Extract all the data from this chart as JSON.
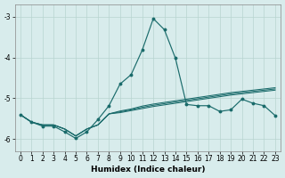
{
  "xlabel": "Humidex (Indice chaleur)",
  "background_color": "#d8ecec",
  "grid_color": "#b8d4d0",
  "line_color": "#1a6b6b",
  "xlim": [
    -0.5,
    23.5
  ],
  "ylim": [
    -6.3,
    -2.7
  ],
  "yticks": [
    -3,
    -4,
    -5,
    -6
  ],
  "xticks": [
    0,
    1,
    2,
    3,
    4,
    5,
    6,
    7,
    8,
    9,
    10,
    11,
    12,
    13,
    14,
    15,
    16,
    17,
    18,
    19,
    20,
    21,
    22,
    23
  ],
  "main_series": [
    -5.4,
    -5.58,
    -5.68,
    -5.68,
    -5.82,
    -5.98,
    -5.82,
    -5.52,
    -5.18,
    -4.65,
    -4.42,
    -3.82,
    -3.05,
    -3.32,
    -4.02,
    -5.15,
    -5.18,
    -5.18,
    -5.32,
    -5.28,
    -5.02,
    -5.12,
    -5.18,
    -5.42
  ],
  "flat1": [
    -5.4,
    -5.58,
    -5.65,
    -5.65,
    -5.75,
    -5.92,
    -5.75,
    -5.65,
    -5.38,
    -5.35,
    -5.3,
    -5.25,
    -5.2,
    -5.16,
    -5.12,
    -5.08,
    -5.04,
    -5.0,
    -4.96,
    -4.92,
    -4.89,
    -4.86,
    -4.83,
    -4.8
  ],
  "flat2": [
    -5.4,
    -5.58,
    -5.65,
    -5.65,
    -5.75,
    -5.92,
    -5.75,
    -5.65,
    -5.38,
    -5.33,
    -5.28,
    -5.22,
    -5.17,
    -5.13,
    -5.09,
    -5.05,
    -5.01,
    -4.97,
    -4.93,
    -4.89,
    -4.86,
    -4.83,
    -4.8,
    -4.77
  ],
  "flat3": [
    -5.4,
    -5.58,
    -5.65,
    -5.65,
    -5.75,
    -5.92,
    -5.75,
    -5.65,
    -5.38,
    -5.31,
    -5.26,
    -5.19,
    -5.14,
    -5.1,
    -5.06,
    -5.02,
    -4.98,
    -4.94,
    -4.9,
    -4.86,
    -4.83,
    -4.8,
    -4.77,
    -4.74
  ]
}
